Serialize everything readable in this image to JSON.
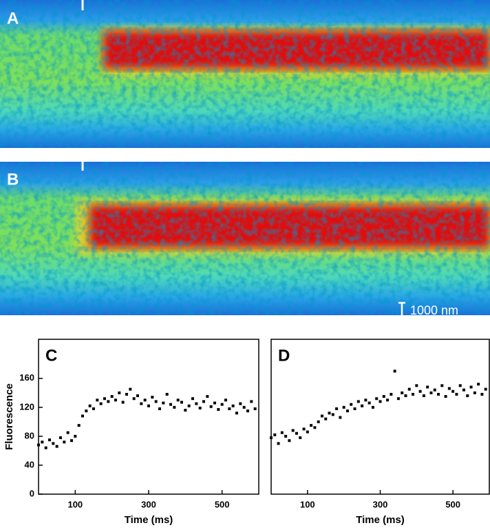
{
  "panels": [
    {
      "label": "A"
    },
    {
      "label": "B",
      "scale_bar": "1000 nm"
    }
  ],
  "chart_data": [
    {
      "type": "scatter",
      "panel": "C",
      "ylabel": "Fluorescence",
      "xlabel": "Time (ms)",
      "color": "#000000",
      "xlim": [
        0,
        600
      ],
      "xticks": [
        100,
        300,
        500
      ],
      "ylim": [
        0,
        214
      ],
      "yticks": [
        0,
        40,
        80,
        120,
        160
      ],
      "x": [
        0,
        10,
        20,
        30,
        40,
        50,
        60,
        70,
        80,
        90,
        100,
        110,
        120,
        130,
        140,
        150,
        160,
        170,
        180,
        190,
        200,
        210,
        220,
        230,
        240,
        250,
        260,
        270,
        280,
        290,
        300,
        310,
        320,
        330,
        340,
        350,
        360,
        370,
        380,
        390,
        400,
        410,
        420,
        430,
        440,
        450,
        460,
        470,
        480,
        490,
        500,
        510,
        520,
        530,
        540,
        550,
        560,
        570,
        580,
        590
      ],
      "values": [
        68,
        72,
        64,
        75,
        70,
        66,
        78,
        72,
        85,
        74,
        80,
        95,
        108,
        115,
        122,
        118,
        130,
        125,
        132,
        128,
        135,
        130,
        140,
        127,
        138,
        145,
        132,
        136,
        125,
        130,
        122,
        134,
        128,
        118,
        126,
        138,
        124,
        120,
        130,
        127,
        116,
        122,
        132,
        125,
        119,
        128,
        135,
        121,
        126,
        117,
        124,
        130,
        118,
        122,
        112,
        125,
        120,
        115,
        128,
        118
      ]
    },
    {
      "type": "scatter",
      "panel": "D",
      "xlabel": "Time (ms)",
      "color": "#000000",
      "xlim": [
        0,
        600
      ],
      "xticks": [
        100,
        300,
        500
      ],
      "ylim": [
        0,
        214
      ],
      "x": [
        0,
        10,
        20,
        30,
        40,
        50,
        60,
        70,
        80,
        90,
        100,
        110,
        120,
        130,
        140,
        150,
        160,
        170,
        180,
        190,
        200,
        210,
        220,
        230,
        240,
        250,
        260,
        270,
        280,
        290,
        300,
        310,
        320,
        330,
        340,
        350,
        360,
        370,
        380,
        390,
        400,
        410,
        420,
        430,
        440,
        450,
        460,
        470,
        480,
        490,
        500,
        510,
        520,
        530,
        540,
        550,
        560,
        570,
        580,
        590
      ],
      "values": [
        78,
        82,
        70,
        85,
        80,
        74,
        88,
        84,
        78,
        90,
        86,
        95,
        92,
        100,
        108,
        104,
        112,
        110,
        118,
        106,
        120,
        115,
        124,
        118,
        128,
        122,
        130,
        126,
        120,
        132,
        128,
        135,
        130,
        138,
        170,
        132,
        140,
        136,
        145,
        138,
        150,
        142,
        136,
        148,
        140,
        144,
        138,
        150,
        135,
        146,
        142,
        138,
        150,
        144,
        136,
        148,
        140,
        152,
        138,
        145
      ]
    }
  ]
}
